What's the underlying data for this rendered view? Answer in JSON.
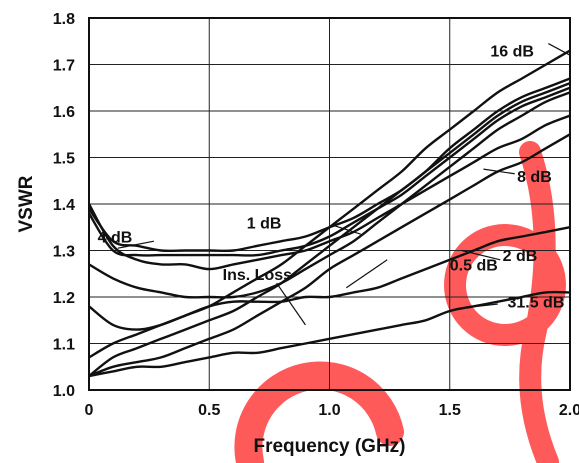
{
  "chart_data": {
    "type": "line",
    "title": "",
    "xlabel": "Frequency (GHz)",
    "ylabel": "VSWR",
    "xlim": [
      0,
      2.0
    ],
    "ylim": [
      1.0,
      1.8
    ],
    "xticks": [
      "0",
      "0.5",
      "1.0",
      "1.5",
      "2.0"
    ],
    "yticks": [
      "1.0",
      "1.1",
      "1.2",
      "1.3",
      "1.4",
      "1.5",
      "1.6",
      "1.7",
      "1.8"
    ],
    "grid": true,
    "x": [
      0,
      0.1,
      0.2,
      0.3,
      0.4,
      0.5,
      0.6,
      0.7,
      0.8,
      0.9,
      1.0,
      1.1,
      1.2,
      1.3,
      1.4,
      1.5,
      1.6,
      1.7,
      1.8,
      1.9,
      2.0
    ],
    "series": [
      {
        "name": "16 dB",
        "values": [
          1.07,
          1.1,
          1.12,
          1.14,
          1.16,
          1.18,
          1.21,
          1.24,
          1.27,
          1.31,
          1.35,
          1.39,
          1.43,
          1.47,
          1.52,
          1.56,
          1.6,
          1.64,
          1.67,
          1.7,
          1.73
        ]
      },
      {
        "name": "4 dB",
        "values": [
          1.39,
          1.32,
          1.31,
          1.3,
          1.3,
          1.3,
          1.3,
          1.31,
          1.32,
          1.33,
          1.35,
          1.37,
          1.4,
          1.43,
          1.47,
          1.51,
          1.55,
          1.59,
          1.62,
          1.64,
          1.66
        ]
      },
      {
        "name": "1 dB",
        "values": [
          1.38,
          1.3,
          1.29,
          1.29,
          1.29,
          1.29,
          1.29,
          1.29,
          1.3,
          1.31,
          1.33,
          1.36,
          1.39,
          1.42,
          1.46,
          1.5,
          1.54,
          1.58,
          1.61,
          1.63,
          1.65
        ]
      },
      {
        "name": "",
        "values": [
          1.03,
          1.07,
          1.09,
          1.11,
          1.13,
          1.15,
          1.17,
          1.2,
          1.23,
          1.27,
          1.31,
          1.35,
          1.39,
          1.43,
          1.47,
          1.52,
          1.56,
          1.6,
          1.63,
          1.65,
          1.67
        ]
      },
      {
        "name": "0.5 dB",
        "values": [
          1.27,
          1.24,
          1.22,
          1.21,
          1.2,
          1.2,
          1.2,
          1.21,
          1.23,
          1.26,
          1.29,
          1.32,
          1.36,
          1.4,
          1.44,
          1.48,
          1.52,
          1.56,
          1.59,
          1.62,
          1.64
        ]
      },
      {
        "name": "8 dB",
        "values": [
          1.03,
          1.05,
          1.06,
          1.07,
          1.09,
          1.11,
          1.13,
          1.16,
          1.19,
          1.22,
          1.26,
          1.29,
          1.32,
          1.35,
          1.38,
          1.41,
          1.44,
          1.47,
          1.49,
          1.52,
          1.55
        ]
      },
      {
        "name": "Ins. Loss",
        "values": [
          1.4,
          1.31,
          1.28,
          1.27,
          1.27,
          1.26,
          1.27,
          1.28,
          1.29,
          1.3,
          1.32,
          1.34,
          1.37,
          1.4,
          1.43,
          1.46,
          1.49,
          1.52,
          1.54,
          1.57,
          1.59
        ]
      },
      {
        "name": "2 dB",
        "values": [
          1.18,
          1.14,
          1.13,
          1.14,
          1.16,
          1.18,
          1.19,
          1.19,
          1.19,
          1.2,
          1.2,
          1.21,
          1.22,
          1.24,
          1.26,
          1.28,
          1.3,
          1.32,
          1.33,
          1.34,
          1.35
        ]
      },
      {
        "name": "31.5 dB",
        "values": [
          1.03,
          1.04,
          1.05,
          1.05,
          1.06,
          1.07,
          1.08,
          1.08,
          1.09,
          1.1,
          1.11,
          1.12,
          1.13,
          1.14,
          1.15,
          1.17,
          1.18,
          1.19,
          1.2,
          1.21,
          1.21
        ]
      }
    ],
    "annotations": [
      {
        "text": "16 dB",
        "x": 1.85,
        "y": 1.73
      },
      {
        "text": "4 dB",
        "x": 0.18,
        "y": 1.33
      },
      {
        "text": "1 dB",
        "x": 0.8,
        "y": 1.36
      },
      {
        "text": "8 dB",
        "x": 1.78,
        "y": 1.46
      },
      {
        "text": "2 dB",
        "x": 1.72,
        "y": 1.29
      },
      {
        "text": "0.5 dB",
        "x": 1.5,
        "y": 1.27
      },
      {
        "text": "31.5 dB",
        "x": 1.74,
        "y": 1.19
      },
      {
        "text": "Ins. Loss",
        "x": 0.7,
        "y": 1.25
      }
    ],
    "watermark_color": "#ff5a5a"
  }
}
